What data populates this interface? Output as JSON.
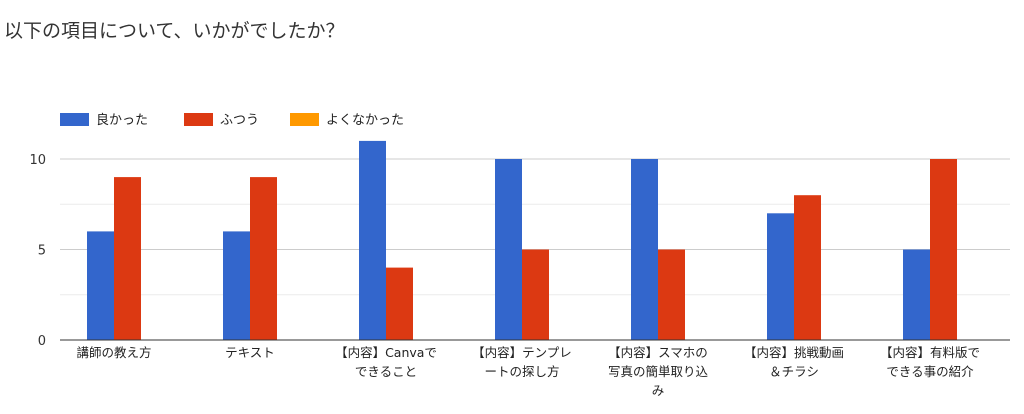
{
  "question": "以下の項目について、いかがでしたか？",
  "chart_data": {
    "type": "bar",
    "categories": [
      [
        "講師の教え方"
      ],
      [
        "テキスト"
      ],
      [
        "【内容】Canvaで",
        "できること"
      ],
      [
        "【内容】テンプレ",
        "ートの探し方"
      ],
      [
        "【内容】スマホの",
        "写真の簡単取り込",
        "み"
      ],
      [
        "【内容】挑戦動画",
        "＆チラシ"
      ],
      [
        "【内容】有料版で",
        "できる事の紹介"
      ]
    ],
    "series": [
      {
        "name": "良かった",
        "color": "#3366cc",
        "values": [
          6,
          6,
          11,
          10,
          10,
          7,
          5
        ]
      },
      {
        "name": "ふつう",
        "color": "#dc3912",
        "values": [
          9,
          9,
          4,
          5,
          5,
          8,
          10
        ]
      },
      {
        "name": "よくなかった",
        "color": "#ff9900",
        "values": [
          0,
          0,
          0,
          0,
          0,
          0,
          0
        ]
      }
    ],
    "yticks": [
      0,
      5,
      10
    ],
    "ylim": [
      0,
      11
    ],
    "legend_position": "top-left",
    "grid": true
  }
}
